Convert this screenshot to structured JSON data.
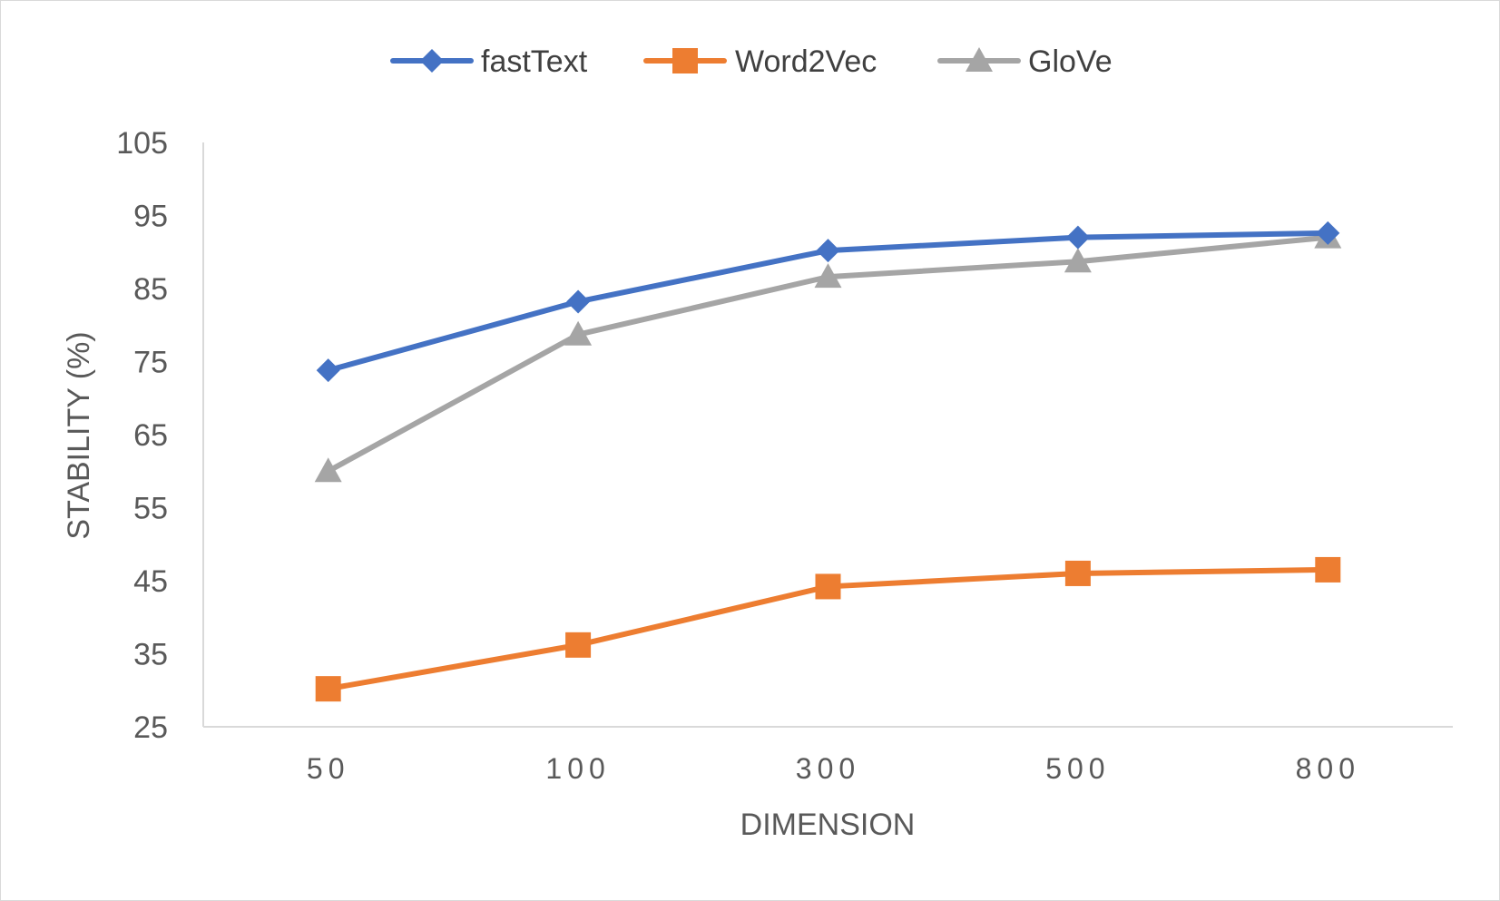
{
  "chart_data": {
    "type": "line",
    "categories": [
      "50",
      "100",
      "300",
      "500",
      "800"
    ],
    "series": [
      {
        "name": "fastText",
        "values": [
          73.8,
          83.2,
          90.2,
          92.0,
          92.6
        ],
        "color": "#4472c4",
        "marker": "diamond"
      },
      {
        "name": "Word2Vec",
        "values": [
          30.2,
          36.2,
          44.2,
          46.0,
          46.5
        ],
        "color": "#ed7d31",
        "marker": "square"
      },
      {
        "name": "GloVe",
        "values": [
          60.0,
          78.7,
          86.6,
          88.7,
          92.0
        ],
        "color": "#a5a5a5",
        "marker": "triangle"
      }
    ],
    "title": "",
    "xlabel": "DIMENSION",
    "ylabel": "STABILITY (%)",
    "ylim": [
      25,
      105
    ],
    "yticks": [
      25,
      35,
      45,
      55,
      65,
      75,
      85,
      95,
      105
    ],
    "grid": false,
    "legend": "top-center"
  }
}
